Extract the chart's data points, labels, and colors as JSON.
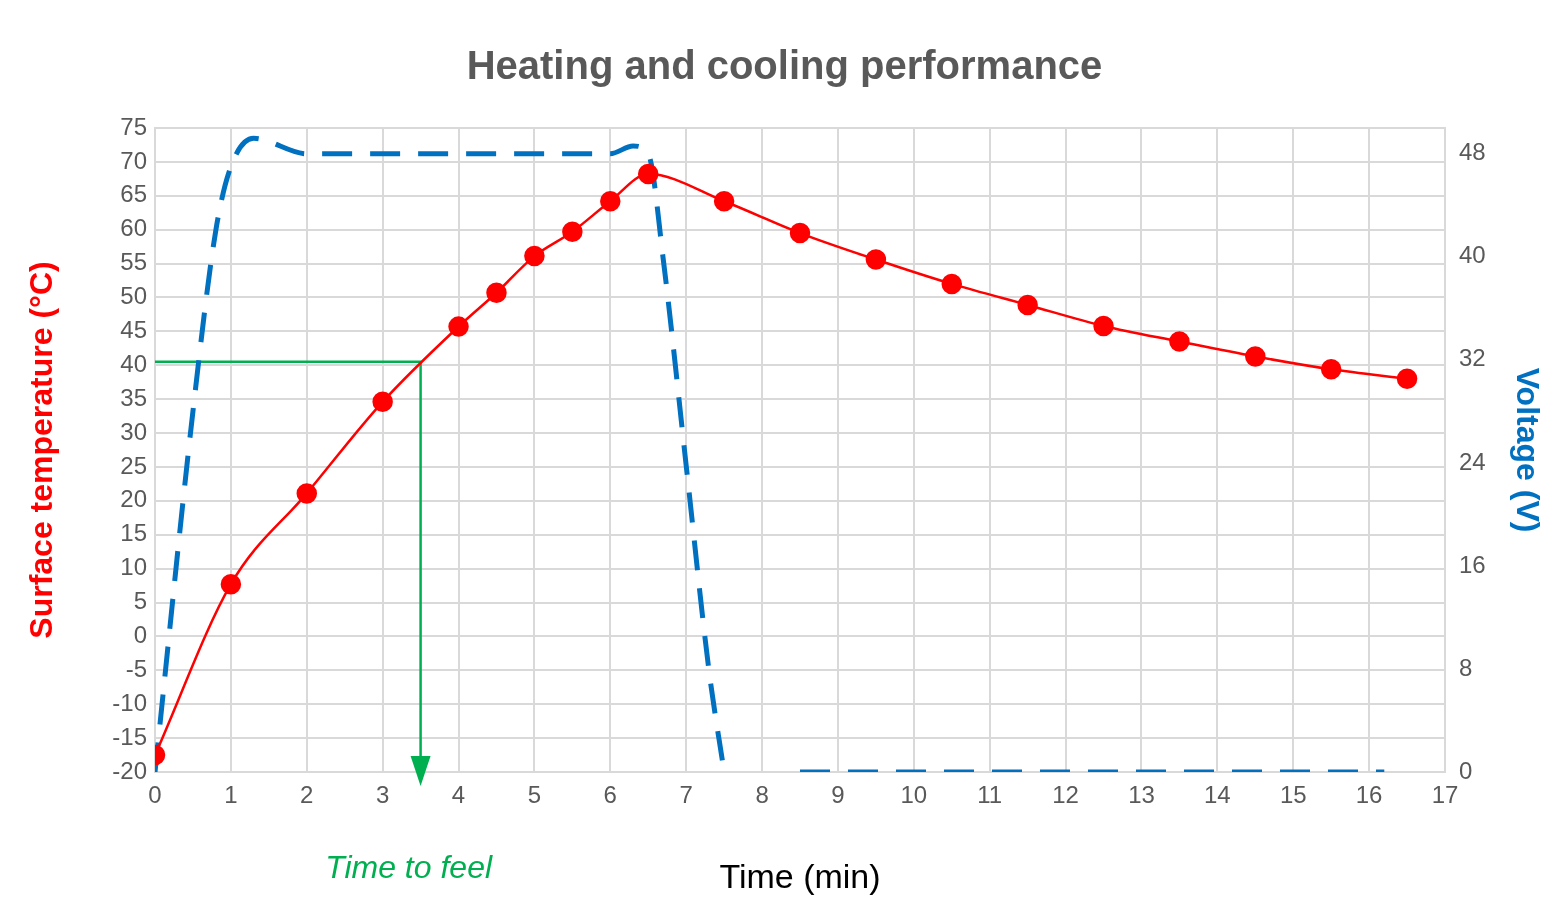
{
  "chart_data": {
    "type": "line",
    "title": "Heating and cooling performance",
    "xlabel": "Time (min)",
    "ylabel": "Surface temperature (°C)",
    "y2label": "Voltage (V)",
    "xlim": [
      0,
      17
    ],
    "xticks": [
      0,
      1,
      2,
      3,
      4,
      5,
      6,
      7,
      8,
      9,
      10,
      11,
      12,
      13,
      14,
      15,
      16,
      17
    ],
    "ylim": [
      -20,
      75
    ],
    "yticks": [
      -20,
      -15,
      -10,
      -5,
      0,
      5,
      10,
      15,
      20,
      25,
      30,
      35,
      40,
      45,
      50,
      55,
      60,
      65,
      70,
      75
    ],
    "y2lim": [
      0,
      50
    ],
    "y2ticks": [
      0,
      8,
      16,
      24,
      32,
      40,
      48
    ],
    "grid": true,
    "legend": false,
    "annotations": [
      {
        "text": "Time to feel",
        "x": 3.5,
        "y": -20
      }
    ],
    "series": [
      {
        "color": "#ff0000",
        "marker": "circle",
        "line_style": "solid",
        "x": [
          0,
          1,
          2,
          3,
          4,
          4.5,
          5,
          5.5,
          6,
          6.5,
          7.5,
          8.5,
          9.5,
          10.5,
          11.5,
          12.5,
          13.5,
          14.5,
          15.5,
          16.5
        ],
        "values": [
          -17.5,
          7.7,
          21.1,
          34.6,
          45.7,
          50.7,
          56.1,
          59.7,
          64.2,
          68.2,
          64.2,
          59.5,
          55.6,
          52,
          48.9,
          45.8,
          43.5,
          41.3,
          39.4,
          38
        ]
      },
      {
        "axis": "y2",
        "color": "#0070c0",
        "marker": "none",
        "line_style": "dashed",
        "x": [
          0,
          0.5,
          0.8,
          1,
          1.3,
          2,
          6,
          6.3,
          6.5,
          6.7,
          7,
          7.3,
          7.5,
          8,
          8.5,
          16.2
        ],
        "values": [
          0,
          28,
          42,
          47,
          49.2,
          48,
          48,
          48.6,
          48,
          39.7,
          23.8,
          7.9,
          0,
          null,
          0,
          0
        ]
      },
      {
        "color": "#00b050",
        "marker": "none",
        "line_style": "solid",
        "x": [
          0,
          3.5,
          3.5
        ],
        "values": [
          40.5,
          40.5,
          -20
        ]
      }
    ]
  }
}
